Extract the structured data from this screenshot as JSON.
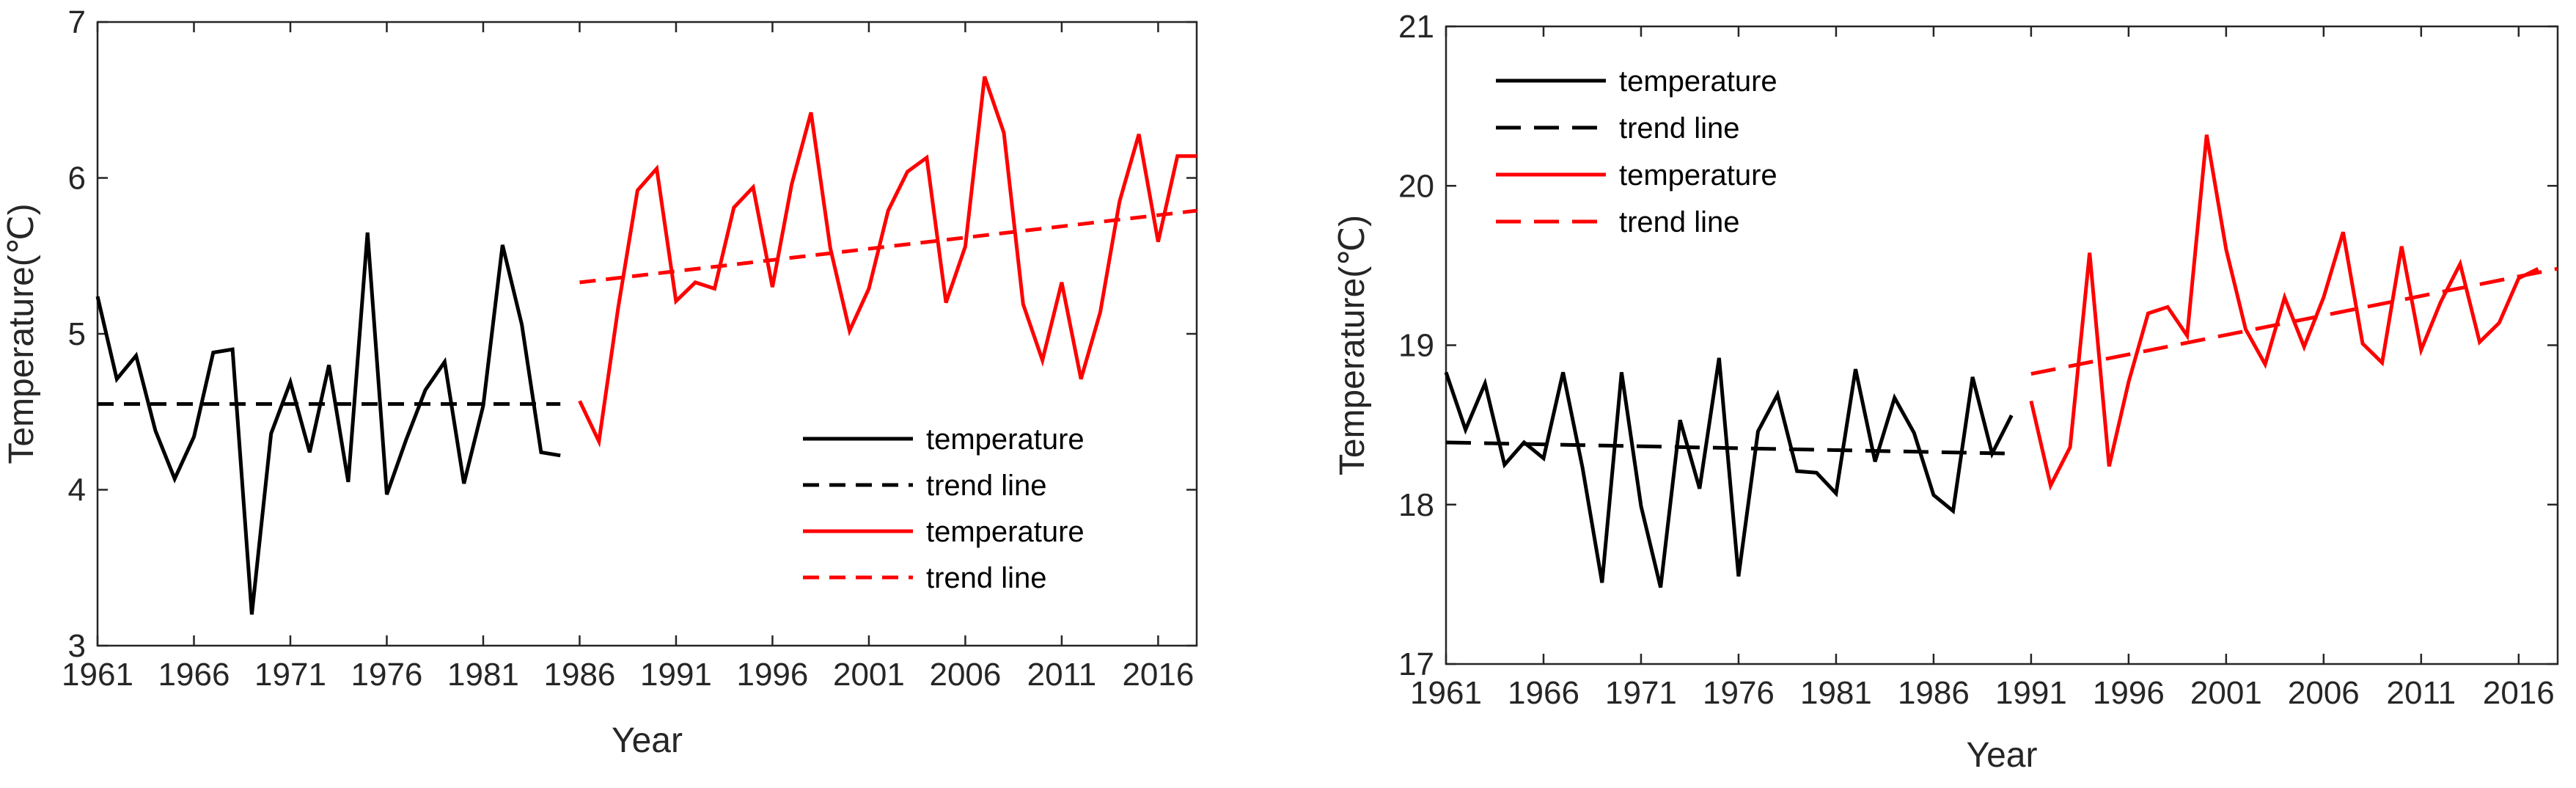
{
  "chart_data": [
    {
      "type": "line",
      "title": "",
      "xlabel": "Year",
      "ylabel": "Temperature(℃)",
      "xlim": [
        1961,
        2018
      ],
      "ylim": [
        3,
        7
      ],
      "xticks": [
        1961,
        1966,
        1971,
        1976,
        1981,
        1986,
        1991,
        1996,
        2001,
        2006,
        2011,
        2016
      ],
      "yticks": [
        3,
        4,
        5,
        6,
        7
      ],
      "grid": false,
      "legend_position": "bottom-right",
      "series": [
        {
          "name": "temperature",
          "color": "#000000",
          "style": "solid",
          "x": [
            1961,
            1962,
            1963,
            1964,
            1965,
            1966,
            1967,
            1968,
            1969,
            1970,
            1971,
            1972,
            1973,
            1974,
            1975,
            1976,
            1977,
            1978,
            1979,
            1980,
            1981,
            1982,
            1983,
            1984,
            1985
          ],
          "values": [
            5.24,
            4.71,
            4.86,
            4.38,
            4.07,
            4.34,
            4.88,
            4.9,
            3.2,
            4.36,
            4.69,
            4.24,
            4.8,
            4.05,
            5.65,
            3.97,
            4.32,
            4.64,
            4.82,
            4.04,
            4.54,
            5.57,
            5.06,
            4.24,
            4.22
          ]
        },
        {
          "name": "trend line",
          "color": "#000000",
          "style": "dashed",
          "x": [
            1961,
            1985
          ],
          "values": [
            4.55,
            4.55
          ]
        },
        {
          "name": "temperature",
          "color": "#ff0000",
          "style": "solid",
          "x": [
            1986,
            1987,
            1988,
            1989,
            1990,
            1991,
            1992,
            1993,
            1994,
            1995,
            1996,
            1997,
            1998,
            1999,
            2000,
            2001,
            2002,
            2003,
            2004,
            2005,
            2006,
            2007,
            2008,
            2009,
            2010,
            2011,
            2012,
            2013,
            2014,
            2015,
            2016,
            2017,
            2018
          ],
          "values": [
            4.57,
            4.31,
            5.17,
            5.92,
            6.06,
            5.21,
            5.33,
            5.29,
            5.81,
            5.94,
            5.3,
            5.96,
            6.42,
            5.55,
            5.02,
            5.29,
            5.79,
            6.04,
            6.13,
            5.2,
            5.56,
            6.65,
            6.29,
            5.19,
            4.83,
            5.33,
            4.71,
            5.14,
            5.85,
            6.28,
            5.59,
            6.14,
            6.14
          ]
        },
        {
          "name": "trend line",
          "color": "#ff0000",
          "style": "dashed",
          "x": [
            1986,
            2018
          ],
          "values": [
            5.33,
            5.79
          ]
        }
      ]
    },
    {
      "type": "line",
      "title": "",
      "xlabel": "Year",
      "ylabel": "Temperature(℃)",
      "xlim": [
        1961,
        2018
      ],
      "ylim": [
        17,
        21
      ],
      "xticks": [
        1961,
        1966,
        1971,
        1976,
        1981,
        1986,
        1991,
        1996,
        2001,
        2006,
        2011,
        2016
      ],
      "yticks": [
        17,
        18,
        19,
        20,
        21
      ],
      "grid": false,
      "legend_position": "top-left",
      "series": [
        {
          "name": "temperature",
          "color": "#000000",
          "style": "solid",
          "x": [
            1961,
            1962,
            1963,
            1964,
            1965,
            1966,
            1967,
            1968,
            1969,
            1970,
            1971,
            1972,
            1973,
            1974,
            1975,
            1976,
            1977,
            1978,
            1979,
            1980,
            1981,
            1982,
            1983,
            1984,
            1985,
            1986,
            1987,
            1988,
            1989,
            1990
          ],
          "values": [
            18.83,
            18.47,
            18.76,
            18.25,
            18.39,
            18.29,
            18.83,
            18.23,
            17.51,
            18.83,
            17.99,
            17.48,
            18.53,
            18.1,
            18.92,
            17.55,
            18.46,
            18.69,
            18.21,
            18.2,
            18.07,
            18.85,
            18.27,
            18.67,
            18.45,
            18.06,
            17.96,
            18.8,
            18.32,
            18.56
          ]
        },
        {
          "name": "trend line",
          "color": "#000000",
          "style": "dashed",
          "x": [
            1961,
            1990
          ],
          "values": [
            18.39,
            18.32
          ]
        },
        {
          "name": "temperature",
          "color": "#ff0000",
          "style": "solid",
          "x": [
            1991,
            1992,
            1993,
            1994,
            1995,
            1996,
            1997,
            1998,
            1999,
            2000,
            2001,
            2002,
            2003,
            2004,
            2005,
            2006,
            2007,
            2008,
            2009,
            2010,
            2011,
            2012,
            2013,
            2014,
            2015,
            2016,
            2017
          ],
          "values": [
            18.65,
            18.12,
            18.36,
            19.58,
            18.24,
            18.77,
            19.2,
            19.24,
            19.06,
            20.32,
            19.6,
            19.1,
            18.88,
            19.3,
            18.99,
            19.3,
            19.71,
            19.01,
            18.89,
            19.62,
            18.97,
            19.27,
            19.51,
            19.02,
            19.14,
            19.42,
            19.48
          ]
        },
        {
          "name": "trend line",
          "color": "#ff0000",
          "style": "dashed",
          "x": [
            1991,
            2018
          ],
          "values": [
            18.82,
            19.48
          ]
        }
      ]
    }
  ]
}
